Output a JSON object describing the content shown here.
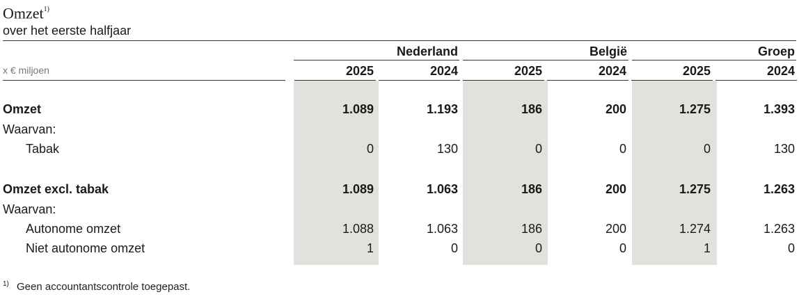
{
  "title": "Omzet",
  "title_sup": "1)",
  "subtitle": "over het eerste halfjaar",
  "unit": "x € miljoen",
  "regions": [
    "Nederland",
    "België",
    "Groep"
  ],
  "years": [
    "2025",
    "2024",
    "2025",
    "2024",
    "2025",
    "2024"
  ],
  "rows": [
    {
      "label": "Omzet",
      "bold": true,
      "indent": false,
      "values": [
        "1.089",
        "1.193",
        "186",
        "200",
        "1.275",
        "1.393"
      ]
    },
    {
      "label": "Waarvan:",
      "bold": false,
      "indent": false,
      "values": []
    },
    {
      "label": "Tabak",
      "bold": false,
      "indent": true,
      "values": [
        "0",
        "130",
        "0",
        "0",
        "0",
        "130"
      ]
    },
    {
      "label": "Omzet excl. tabak",
      "bold": true,
      "indent": false,
      "values": [
        "1.089",
        "1.063",
        "186",
        "200",
        "1.275",
        "1.263"
      ]
    },
    {
      "label": "Waarvan:",
      "bold": false,
      "indent": false,
      "values": []
    },
    {
      "label": "Autonome omzet",
      "bold": false,
      "indent": true,
      "values": [
        "1.088",
        "1.063",
        "186",
        "200",
        "1.274",
        "1.263"
      ]
    },
    {
      "label": "Niet autonome omzet",
      "bold": false,
      "indent": true,
      "values": [
        "1",
        "0",
        "0",
        "0",
        "1",
        "0"
      ]
    }
  ],
  "footnote_sup": "1)",
  "footnote": "Geen accountantscontrole toegepast."
}
